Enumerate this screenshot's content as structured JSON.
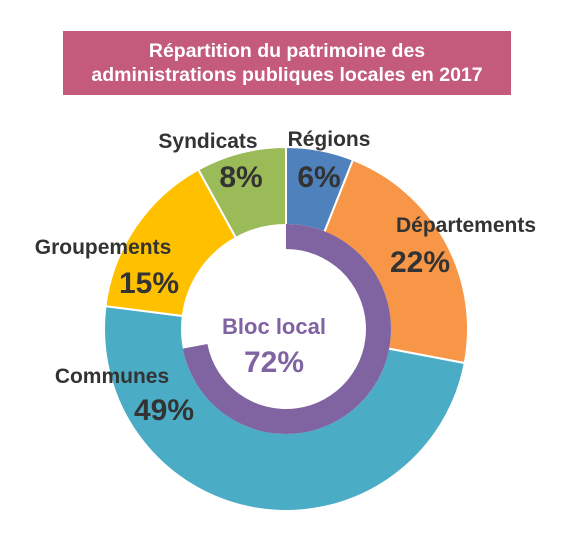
{
  "chart_data": {
    "type": "pie",
    "title_line1": "Répartition du patrimoine des",
    "title_line2": "administrations publiques locales en 2017",
    "unit": "%",
    "outer_ring": [
      {
        "name": "Régions",
        "value": 6,
        "label": "6%",
        "color": "#4f81bd"
      },
      {
        "name": "Départements",
        "value": 22,
        "label": "22%",
        "color": "#f79646"
      },
      {
        "name": "Communes",
        "value": 49,
        "label": "49%",
        "color": "#4bacc6"
      },
      {
        "name": "Groupements",
        "value": 15,
        "label": "15%",
        "color": "#ffc000"
      },
      {
        "name": "Syndicats",
        "value": 8,
        "label": "8%",
        "color": "#9bbb59"
      }
    ],
    "inner_ring": {
      "name": "Bloc local",
      "value": 72,
      "label": "72%",
      "color": "#8064a2"
    }
  }
}
